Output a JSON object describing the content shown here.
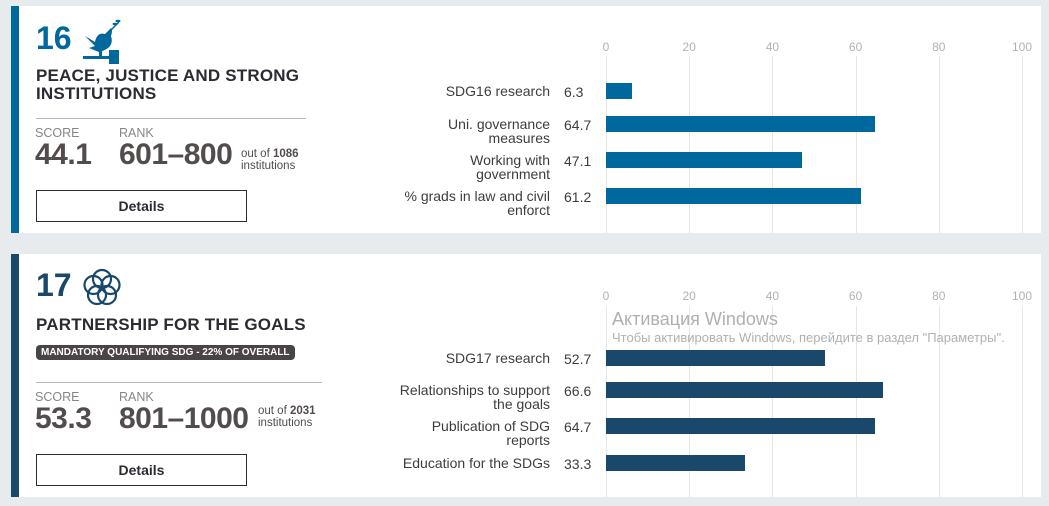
{
  "cards": [
    {
      "number": "16",
      "icon": "dove-gavel-icon",
      "title_line1": "PEACE, JUSTICE AND STRONG",
      "title_line2": "INSTITUTIONS",
      "score_label": "SCORE",
      "score": "44.1",
      "rank_label": "RANK",
      "rank": "601–800",
      "out_of_prefix": "out of",
      "out_of": "1086",
      "institutions": "institutions",
      "details_label": "Details",
      "color": "#00689d"
    },
    {
      "number": "17",
      "icon": "interlocking-rings-icon",
      "title_line1": "PARTNERSHIP FOR THE GOALS",
      "badge": "MANDATORY QUALIFYING SDG - 22% OF OVERALL",
      "score_label": "SCORE",
      "score": "53.3",
      "rank_label": "RANK",
      "rank": "801–1000",
      "out_of_prefix": "out of",
      "out_of": "2031",
      "institutions": "institutions",
      "details_label": "Details",
      "color": "#19486a"
    }
  ],
  "chart_data": [
    {
      "type": "bar",
      "orientation": "horizontal",
      "xlim": [
        0,
        100
      ],
      "ticks": [
        "0",
        "20",
        "40",
        "60",
        "80",
        "100"
      ],
      "grid": true,
      "categories": [
        "SDG16 research",
        "Uni. governance measures",
        "Working with government",
        "% grads in law and civil enforct"
      ],
      "category_lines": [
        [
          "SDG16 research"
        ],
        [
          "Uni. governance",
          "measures"
        ],
        [
          "Working with",
          "government"
        ],
        [
          "% grads in law and civil",
          "enforct"
        ]
      ],
      "values": [
        6.3,
        64.7,
        47.1,
        61.2
      ],
      "value_labels": [
        "6.3",
        "64.7",
        "47.1",
        "61.2"
      ],
      "color": "#00689d"
    },
    {
      "type": "bar",
      "orientation": "horizontal",
      "xlim": [
        0,
        100
      ],
      "ticks": [
        "0",
        "20",
        "40",
        "60",
        "80",
        "100"
      ],
      "grid": true,
      "categories": [
        "SDG17 research",
        "Relationships to support the goals",
        "Publication of SDG reports",
        "Education for the SDGs"
      ],
      "category_lines": [
        [
          "SDG17 research"
        ],
        [
          "Relationships to support",
          "the goals"
        ],
        [
          "Publication of SDG",
          "reports"
        ],
        [
          "Education for the SDGs"
        ]
      ],
      "values": [
        52.7,
        66.6,
        64.7,
        33.3
      ],
      "value_labels": [
        "52.7",
        "66.6",
        "64.7",
        "33.3"
      ],
      "color": "#19486a"
    }
  ],
  "watermark": {
    "line1": "Активация Windows",
    "line2": "Чтобы активировать Windows, перейдите в раздел \"Параметры\"."
  }
}
